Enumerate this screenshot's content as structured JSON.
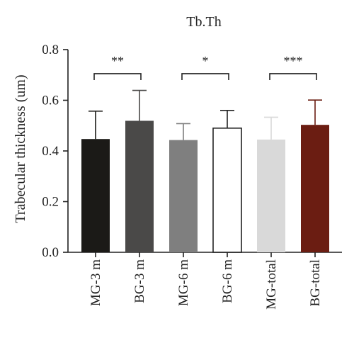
{
  "chart_data": {
    "type": "bar",
    "title": "Tb.Th",
    "xlabel": "",
    "ylabel": "Trabecular thickness (um)",
    "ylim": [
      0,
      0.8
    ],
    "yticks": [
      "0.0",
      "0.2",
      "0.4",
      "0.6",
      "0.8"
    ],
    "grid": false,
    "categories": [
      "MG-3 m",
      "BG-3 m",
      "MG-6 m",
      "BG-6 m",
      "MG-total",
      "BG-total"
    ],
    "values": [
      0.447,
      0.519,
      0.443,
      0.49,
      0.445,
      0.503
    ],
    "errors": [
      0.11,
      0.12,
      0.065,
      0.07,
      0.088,
      0.098
    ],
    "colors": [
      "#1b1a17",
      "#4a4948",
      "#7f7f7f",
      "#ffffff",
      "#d9d9d9",
      "#6b1d12"
    ],
    "error_colors": [
      "#1b1a17",
      "#4a4948",
      "#7f7f7f",
      "#222222",
      "#d9d9d9",
      "#6b1d12"
    ],
    "significance": [
      {
        "from": 0,
        "to": 1,
        "label": "**",
        "y": 0.705
      },
      {
        "from": 2,
        "to": 3,
        "label": "*",
        "y": 0.705
      },
      {
        "from": 4,
        "to": 5,
        "label": "***",
        "y": 0.705
      }
    ]
  }
}
